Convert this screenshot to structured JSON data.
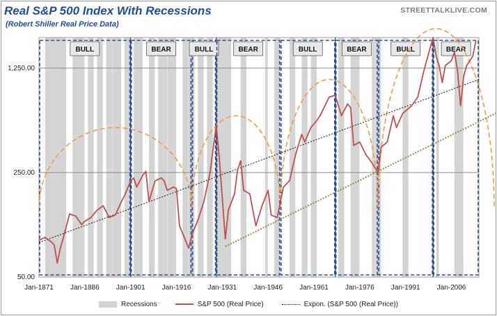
{
  "header": {
    "title": "Real S&P 500 Index With Recessions",
    "subtitle": "(Robert Shiller Real Price Data)",
    "source": "STREETTALKLIVE.COM"
  },
  "colors": {
    "recession": "#d4d4d4",
    "price": "#c0504d",
    "trend": "#111111",
    "lower_trend": "#7a9a3a",
    "arc": "#f29b42",
    "phase_box": "#2f4f8f",
    "secular_line": "#2e4a8c",
    "title": "#1f4d9a"
  },
  "chart_data": {
    "type": "line",
    "title": "Real S&P 500 Index With Recessions",
    "subtitle": "(Robert Shiller Real Price Data)",
    "y_scale": "log",
    "ylim": [
      50,
      2000
    ],
    "y_ticks": [
      {
        "value": 50,
        "label": "50.00"
      },
      {
        "value": 250,
        "label": "250.00"
      },
      {
        "value": 1250,
        "label": "1,250.00"
      }
    ],
    "xlim": [
      1871,
      2015
    ],
    "x_ticks": [
      {
        "value": 1871,
        "label": "Jan-1871"
      },
      {
        "value": 1886,
        "label": "Jan-1886"
      },
      {
        "value": 1901,
        "label": "Jan-1901"
      },
      {
        "value": 1916,
        "label": "Jan-1916"
      },
      {
        "value": 1931,
        "label": "Jan-1931"
      },
      {
        "value": 1946,
        "label": "Jan-1946"
      },
      {
        "value": 1961,
        "label": "Jan-1961"
      },
      {
        "value": 1976,
        "label": "Jan-1976"
      },
      {
        "value": 1991,
        "label": "Jan-1991"
      },
      {
        "value": 2006,
        "label": "Jan-2006"
      }
    ],
    "series": [
      {
        "name": "S&P 500 (Real Price)",
        "points": [
          [
            1871,
            88
          ],
          [
            1873,
            92
          ],
          [
            1875,
            86
          ],
          [
            1876,
            82
          ],
          [
            1877,
            62
          ],
          [
            1878,
            78
          ],
          [
            1879,
            92
          ],
          [
            1881,
            132
          ],
          [
            1883,
            128
          ],
          [
            1885,
            112
          ],
          [
            1886,
            118
          ],
          [
            1888,
            125
          ],
          [
            1890,
            140
          ],
          [
            1892,
            150
          ],
          [
            1894,
            125
          ],
          [
            1896,
            130
          ],
          [
            1898,
            160
          ],
          [
            1899,
            175
          ],
          [
            1901,
            220
          ],
          [
            1902,
            230
          ],
          [
            1903,
            200
          ],
          [
            1905,
            240
          ],
          [
            1906,
            255
          ],
          [
            1907,
            160
          ],
          [
            1909,
            220
          ],
          [
            1911,
            230
          ],
          [
            1912,
            220
          ],
          [
            1913,
            190
          ],
          [
            1915,
            200
          ],
          [
            1916,
            195
          ],
          [
            1917,
            110
          ],
          [
            1920,
            78
          ],
          [
            1921,
            95
          ],
          [
            1923,
            120
          ],
          [
            1925,
            160
          ],
          [
            1927,
            250
          ],
          [
            1929,
            520
          ],
          [
            1930,
            320
          ],
          [
            1932,
            90
          ],
          [
            1933,
            140
          ],
          [
            1935,
            180
          ],
          [
            1936,
            260
          ],
          [
            1937,
            300
          ],
          [
            1938,
            190
          ],
          [
            1940,
            180
          ],
          [
            1942,
            110
          ],
          [
            1944,
            150
          ],
          [
            1946,
            190
          ],
          [
            1947,
            130
          ],
          [
            1949,
            125
          ],
          [
            1951,
            200
          ],
          [
            1953,
            220
          ],
          [
            1955,
            330
          ],
          [
            1957,
            450
          ],
          [
            1958,
            400
          ],
          [
            1960,
            500
          ],
          [
            1962,
            560
          ],
          [
            1963,
            600
          ],
          [
            1966,
            800
          ],
          [
            1968,
            820
          ],
          [
            1970,
            600
          ],
          [
            1972,
            720
          ],
          [
            1973,
            680
          ],
          [
            1974,
            380
          ],
          [
            1976,
            400
          ],
          [
            1978,
            330
          ],
          [
            1980,
            290
          ],
          [
            1982,
            250
          ],
          [
            1983,
            370
          ],
          [
            1985,
            400
          ],
          [
            1987,
            600
          ],
          [
            1988,
            500
          ],
          [
            1990,
            620
          ],
          [
            1993,
            700
          ],
          [
            1995,
            800
          ],
          [
            1997,
            1200
          ],
          [
            1999,
            1700
          ],
          [
            2000,
            2000
          ],
          [
            2001,
            1500
          ],
          [
            2002,
            1300
          ],
          [
            2003,
            1000
          ],
          [
            2004,
            1300
          ],
          [
            2006,
            1400
          ],
          [
            2007,
            1600
          ],
          [
            2008,
            1200
          ],
          [
            2009,
            700
          ],
          [
            2010,
            1100
          ],
          [
            2011,
            1300
          ],
          [
            2012,
            1400
          ],
          [
            2013,
            1500
          ],
          [
            2014,
            1900
          ]
        ]
      },
      {
        "name": "Expon. (S&P 500 (Real Price))",
        "points": [
          [
            1871,
            85
          ],
          [
            2015,
            1050
          ]
        ]
      },
      {
        "name": "Lower exponential trend",
        "points": [
          [
            1932,
            80
          ],
          [
            2021,
            630
          ]
        ]
      }
    ],
    "recessions": [
      [
        1873,
        1879
      ],
      [
        1882,
        1885
      ],
      [
        1887,
        1888
      ],
      [
        1890,
        1891
      ],
      [
        1893,
        1894
      ],
      [
        1895,
        1897
      ],
      [
        1899,
        1900
      ],
      [
        1902,
        1904
      ],
      [
        1907,
        1908
      ],
      [
        1910,
        1912
      ],
      [
        1913,
        1915
      ],
      [
        1918,
        1919
      ],
      [
        1920,
        1921
      ],
      [
        1923,
        1924
      ],
      [
        1926,
        1927
      ],
      [
        1929,
        1933
      ],
      [
        1937,
        1938
      ],
      [
        1945,
        1945
      ],
      [
        1948,
        1949
      ],
      [
        1953,
        1954
      ],
      [
        1957,
        1958
      ],
      [
        1960,
        1961
      ],
      [
        1969,
        1970
      ],
      [
        1973,
        1975
      ],
      [
        1980,
        1980
      ],
      [
        1981,
        1982
      ],
      [
        1990,
        1991
      ],
      [
        2001,
        2001
      ],
      [
        2007,
        2009
      ]
    ],
    "phases": [
      {
        "label": "BULL",
        "start": 1871,
        "end": 1901
      },
      {
        "label": "BEAR",
        "start": 1901,
        "end": 1921
      },
      {
        "label": "BULL",
        "start": 1921,
        "end": 1929
      },
      {
        "label": "BEAR",
        "start": 1929,
        "end": 1950
      },
      {
        "label": "BULL",
        "start": 1950,
        "end": 1968
      },
      {
        "label": "BEAR",
        "start": 1968,
        "end": 1982
      },
      {
        "label": "BULL",
        "start": 1982,
        "end": 2000
      },
      {
        "label": "BEAR",
        "start": 2000,
        "end": 2015
      }
    ],
    "secular_lines": [
      1901,
      1929,
      1968,
      2000
    ],
    "arcs": [
      {
        "start": 1871,
        "end": 1921,
        "peak": 500
      },
      {
        "start": 1921,
        "end": 1950,
        "peak": 600
      },
      {
        "start": 1950,
        "end": 1982,
        "peak": 1050
      },
      {
        "start": 1982,
        "end": 2020,
        "peak": 2300
      }
    ],
    "legend": [
      {
        "label": "Recessions",
        "kind": "area"
      },
      {
        "label": "S&P 500 (Real Price)",
        "kind": "line"
      },
      {
        "label": "Expon. (S&P 500 (Real Price))",
        "kind": "dotted"
      }
    ]
  }
}
